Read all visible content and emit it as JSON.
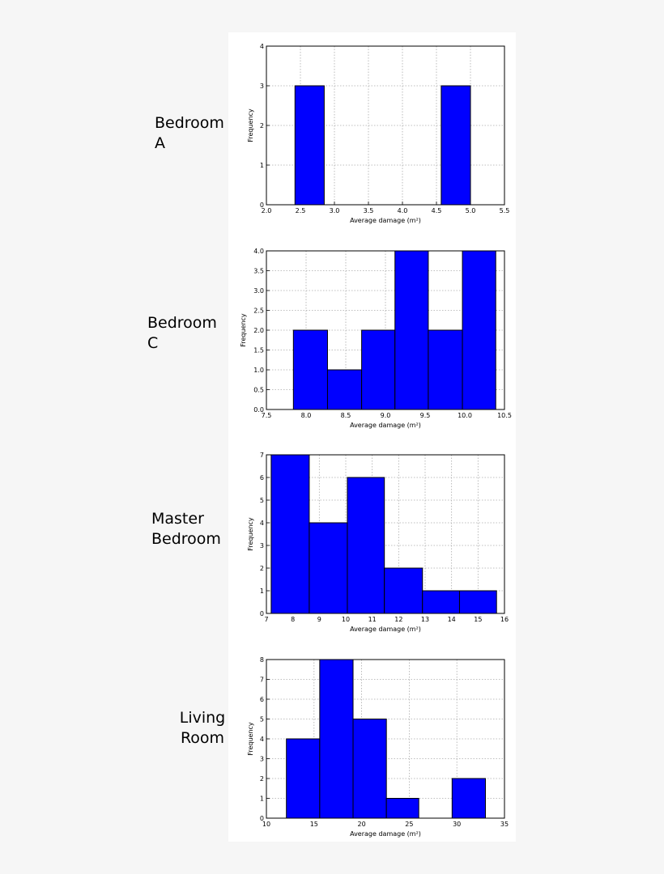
{
  "chart_data": [
    {
      "type": "histogram",
      "room": "Bedroom A",
      "xlabel": "Average damage (m²)",
      "ylabel": "Frequency",
      "bins": [
        2.42,
        2.85,
        3.28,
        3.71,
        4.14,
        4.57,
        5.0
      ],
      "counts": [
        3,
        0,
        0,
        0,
        0,
        3
      ],
      "color": "#0000ff",
      "xlim": [
        2.0,
        5.5
      ],
      "xticks": [
        {
          "value": 2.0,
          "label": "2.0"
        },
        {
          "value": 2.5,
          "label": "2.5"
        },
        {
          "value": 3.0,
          "label": "3.0"
        },
        {
          "value": 3.5,
          "label": "3.5"
        },
        {
          "value": 4.0,
          "label": "4.0"
        },
        {
          "value": 4.5,
          "label": "4.5"
        },
        {
          "value": 5.0,
          "label": "5.0"
        },
        {
          "value": 5.5,
          "label": "5.5"
        }
      ],
      "ylim": [
        0,
        4
      ],
      "yticks": [
        0,
        1,
        2,
        3,
        4
      ],
      "grid": true
    },
    {
      "type": "histogram",
      "room": "Bedroom C",
      "xlabel": "Average damage (m²)",
      "ylabel": "Frequency",
      "bins": [
        7.84,
        8.27,
        8.7,
        9.12,
        9.54,
        9.97,
        10.39
      ],
      "counts": [
        2,
        1,
        2,
        4,
        2,
        4
      ],
      "color": "#0000ff",
      "xlim": [
        7.5,
        10.5
      ],
      "xticks": [
        {
          "value": 7.5,
          "label": "7.5"
        },
        {
          "value": 8.0,
          "label": "8.0"
        },
        {
          "value": 8.5,
          "label": "8.5"
        },
        {
          "value": 9.0,
          "label": "9.0"
        },
        {
          "value": 9.5,
          "label": "9.5"
        },
        {
          "value": 10.0,
          "label": "10.0"
        },
        {
          "value": 10.5,
          "label": "10.5"
        }
      ],
      "ylim": [
        0,
        4
      ],
      "yticks": [
        {
          "value": 0,
          "label": "0.0"
        },
        {
          "value": 0.5,
          "label": "0.5"
        },
        {
          "value": 1,
          "label": "1.0"
        },
        {
          "value": 1.5,
          "label": "1.5"
        },
        {
          "value": 2,
          "label": "2.0"
        },
        {
          "value": 2.5,
          "label": "2.5"
        },
        {
          "value": 3,
          "label": "3.0"
        },
        {
          "value": 3.5,
          "label": "3.5"
        },
        {
          "value": 4,
          "label": "4.0"
        }
      ],
      "grid": true
    },
    {
      "type": "histogram",
      "room": "Master Bedroom",
      "xlabel": "Average damage (m²)",
      "ylabel": "Frequency",
      "bins": [
        7.18,
        8.62,
        10.06,
        11.46,
        12.9,
        14.3,
        15.7
      ],
      "counts": [
        7,
        4,
        6,
        2,
        1,
        1
      ],
      "color": "#0000ff",
      "xlim": [
        7,
        16
      ],
      "xticks": [
        7,
        8,
        9,
        10,
        11,
        12,
        13,
        14,
        15,
        16
      ],
      "ylim": [
        0,
        7
      ],
      "yticks": [
        0,
        1,
        2,
        3,
        4,
        5,
        6,
        7
      ],
      "grid": true
    },
    {
      "type": "histogram",
      "room": "Living Room",
      "xlabel": "Average damage (m²)",
      "ylabel": "Frequency",
      "bins": [
        12.1,
        15.6,
        19.1,
        22.6,
        26.0,
        29.5,
        33.0
      ],
      "counts": [
        4,
        8,
        5,
        1,
        0,
        2
      ],
      "color": "#0000ff",
      "xlim": [
        10,
        35
      ],
      "xticks": [
        10,
        15,
        20,
        25,
        30,
        35
      ],
      "ylim": [
        0,
        8
      ],
      "yticks": [
        0,
        1,
        2,
        3,
        4,
        5,
        6,
        7,
        8
      ],
      "grid": true
    }
  ]
}
